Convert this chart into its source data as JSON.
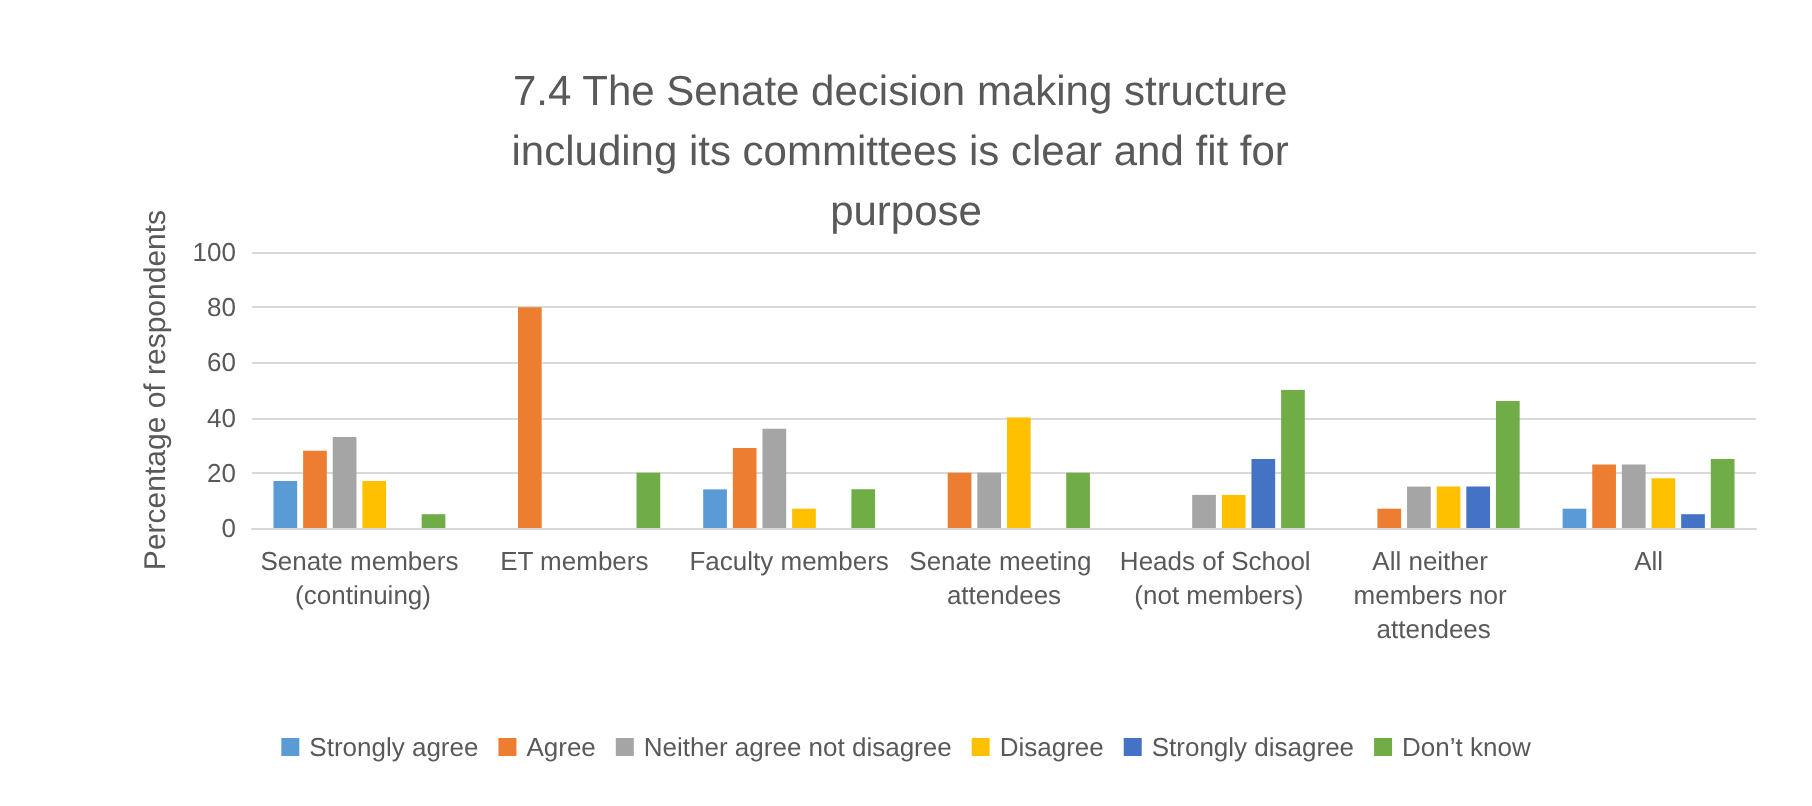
{
  "chart_data": {
    "type": "bar",
    "title": "7.4 The Senate decision making structure including its committees is clear and fit for purpose",
    "ylabel": "Percentage of respondents",
    "categories": [
      "Senate members (continuing)",
      "ET members",
      "Faculty members",
      "Senate meeting attendees",
      "Heads of School (not members)",
      "All neither members nor attendees",
      "All"
    ],
    "series": [
      {
        "name": "Strongly agree",
        "color": "#5b9bd5",
        "values": [
          17,
          0,
          14,
          0,
          0,
          0,
          7
        ]
      },
      {
        "name": "Agree",
        "color": "#ed7d31",
        "values": [
          28,
          80,
          29,
          20,
          0,
          7,
          23
        ]
      },
      {
        "name": "Neither agree not disagree",
        "color": "#a5a5a5",
        "values": [
          33,
          0,
          36,
          20,
          12,
          15,
          23
        ]
      },
      {
        "name": "Disagree",
        "color": "#ffc000",
        "values": [
          17,
          0,
          7,
          40,
          12,
          15,
          18
        ]
      },
      {
        "name": "Strongly disagree",
        "color": "#4472c4",
        "values": [
          0,
          0,
          0,
          0,
          25,
          15,
          5
        ]
      },
      {
        "name": "Don’t know",
        "color": "#70ad47",
        "values": [
          5,
          20,
          14,
          20,
          50,
          46,
          25
        ]
      }
    ],
    "ylim": [
      0,
      100
    ],
    "yticks": [
      0,
      20,
      40,
      60,
      80,
      100
    ],
    "grid": "y",
    "legend": "bottom"
  }
}
